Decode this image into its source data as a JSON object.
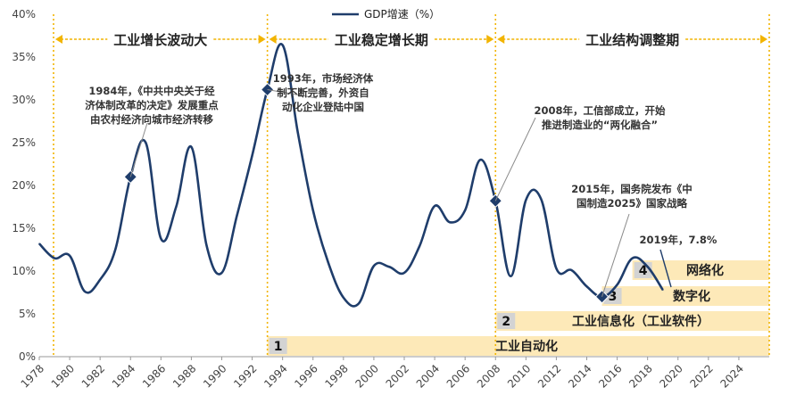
{
  "chart_data": {
    "type": "line",
    "legend": "GDP增速（%）",
    "legend_position": "top-center",
    "ylim": [
      0,
      40
    ],
    "y_ticks": [
      "0%",
      "5%",
      "10%",
      "15%",
      "20%",
      "25%",
      "30%",
      "35%",
      "40%"
    ],
    "x_ticks": [
      "1978",
      "1980",
      "1982",
      "1984",
      "1986",
      "1988",
      "1990",
      "1992",
      "1994",
      "1996",
      "1998",
      "2000",
      "2002",
      "2004",
      "2006",
      "2008",
      "2010",
      "2012",
      "2014",
      "2016",
      "2018",
      "2020",
      "2022",
      "2024"
    ],
    "xlim": [
      1978,
      2026
    ],
    "series": [
      {
        "name": "GDP增速（%）",
        "color": "#1f3d6b",
        "x": [
          1978,
          1979,
          1980,
          1981,
          1982,
          1983,
          1984,
          1985,
          1986,
          1987,
          1988,
          1989,
          1990,
          1991,
          1992,
          1993,
          1994,
          1995,
          1996,
          1997,
          1998,
          1999,
          2000,
          2001,
          2002,
          2003,
          2004,
          2005,
          2006,
          2007,
          2008,
          2009,
          2010,
          2011,
          2012,
          2013,
          2014,
          2015,
          2016,
          2017,
          2018,
          2019
        ],
        "values": [
          13.2,
          11.5,
          11.8,
          7.6,
          9.0,
          12.5,
          21.0,
          25.0,
          13.8,
          17.5,
          24.5,
          13.0,
          9.8,
          16.5,
          23.5,
          31.2,
          36.4,
          26.2,
          17.1,
          11.0,
          6.9,
          6.2,
          10.6,
          10.5,
          9.8,
          12.9,
          17.6,
          15.7,
          17.1,
          23.0,
          18.2,
          9.4,
          18.3,
          18.4,
          10.3,
          10.1,
          8.2,
          7.0,
          8.4,
          11.5,
          10.5,
          7.8
        ]
      }
    ],
    "highlighted_points": [
      {
        "x": 1984,
        "y": 21.0
      },
      {
        "x": 1993,
        "y": 31.2
      },
      {
        "x": 2008,
        "y": 18.2
      },
      {
        "x": 2015,
        "y": 7.0
      }
    ],
    "phases": [
      {
        "label": "工业增长波动大",
        "start": 1978,
        "end": 1993
      },
      {
        "label": "工业稳定增长期",
        "start": 1993,
        "end": 2008
      },
      {
        "label": "工业结构调整期",
        "start": 2008,
        "end": 2026
      }
    ],
    "annotations": [
      {
        "lines": [
          "1984年，《中共中央关于经",
          "济体制改革的决定》发展重点",
          "由农村经济向城市经济转移"
        ]
      },
      {
        "lines": [
          "1993年，市场经济体",
          "制不断完善，外资自",
          "动化企业登陆中国"
        ]
      },
      {
        "lines": [
          "2008年，工信部成立，开始",
          "推进制造业的“两化融合”"
        ]
      },
      {
        "lines": [
          "2015年，国务院发布《中",
          "国制造2025》国家战略"
        ]
      },
      {
        "lines": [
          "2019年，7.8%"
        ]
      }
    ],
    "bands": [
      {
        "num": "1",
        "label": "工业自动化",
        "start": 1993
      },
      {
        "num": "2",
        "label": "工业信息化（工业软件）",
        "start": 2008
      },
      {
        "num": "3",
        "label": "数字化",
        "start": 2015
      },
      {
        "num": "4",
        "label": "网络化",
        "start": 2017
      }
    ]
  }
}
